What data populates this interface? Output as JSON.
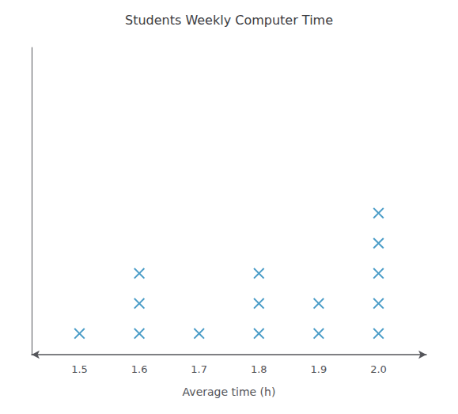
{
  "chart_data": {
    "type": "scatter",
    "title": "Students Weekly Computer Time",
    "xlabel": "Average time (h)",
    "x": [
      1.5,
      1.6,
      1.7,
      1.8,
      1.9,
      2.0,
      1.6,
      1.8,
      1.9,
      2.0,
      1.6,
      1.8,
      2.0,
      2.0,
      2.0
    ],
    "values": [
      1,
      1,
      1,
      1,
      1,
      1,
      2,
      2,
      2,
      2,
      3,
      3,
      3,
      4,
      5
    ],
    "color": "#4a9cc7",
    "marker": "x",
    "xlim": [
      1.42,
      2.08
    ],
    "xticks": [
      1.5,
      1.6,
      1.7,
      1.8,
      1.9,
      {
        "value": 2.0,
        "label": "2.0"
      }
    ],
    "ylim": [
      0.3,
      10.5
    ],
    "grid": false,
    "tick_labels": "x"
  }
}
